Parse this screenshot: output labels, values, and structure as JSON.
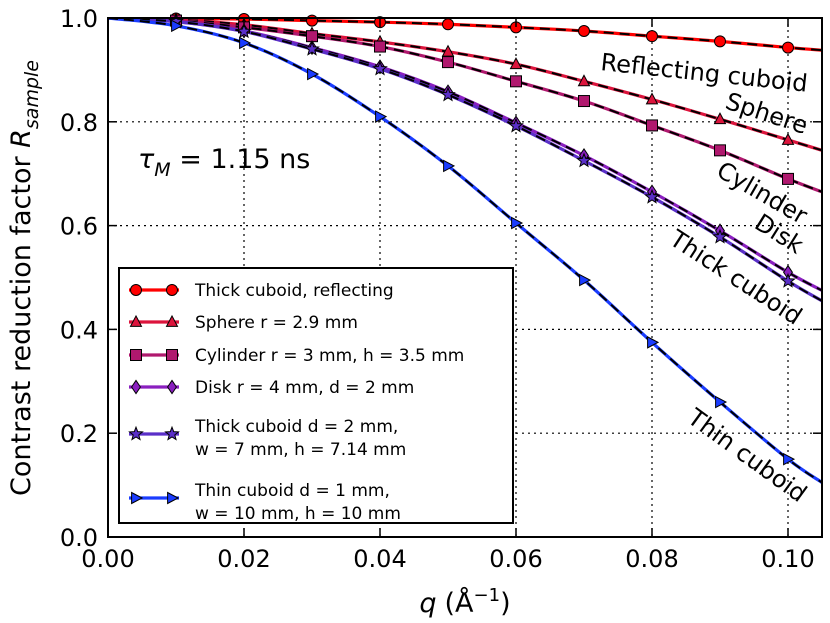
{
  "chart_data": {
    "type": "line",
    "title": "",
    "xlabel": "q (Å⁻¹)",
    "xlabel_var": "q",
    "xlabel_unit_open": "(Å",
    "xlabel_unit_exp": "−1",
    "xlabel_unit_close": ")",
    "ylabel": "Contrast reduction factor R_sample",
    "ylabel_main": "Contrast reduction factor ",
    "ylabel_var": "R",
    "ylabel_sub": "sample",
    "annotation": "τM = 1.15 ns",
    "annotation_var": "τ",
    "annotation_sub": "M",
    "annotation_rest": " = 1.15 ns",
    "xlim": [
      0,
      0.105
    ],
    "ylim": [
      0,
      1.0
    ],
    "xticks": [
      0.0,
      0.02,
      0.04,
      0.06,
      0.08,
      0.1
    ],
    "xtick_labels": [
      "0.00",
      "0.02",
      "0.04",
      "0.06",
      "0.08",
      "0.10"
    ],
    "yticks": [
      0.0,
      0.2,
      0.4,
      0.6,
      0.8,
      1.0
    ],
    "ytick_labels": [
      "0.0",
      "0.2",
      "0.4",
      "0.6",
      "0.8",
      "1.0"
    ],
    "grid": true,
    "legend_position": "lower-left",
    "series": [
      {
        "name": "Thick cuboid, reflecting",
        "legend_lines": [
          "Thick cuboid, reflecting"
        ],
        "curve_label": "Reflecting cuboid",
        "color": "#ff0000",
        "marker": "circle",
        "x": [
          0,
          0.01,
          0.02,
          0.03,
          0.04,
          0.05,
          0.06,
          0.07,
          0.08,
          0.09,
          0.1,
          0.105
        ],
        "values": [
          1.0,
          0.999,
          0.998,
          0.995,
          0.992,
          0.988,
          0.982,
          0.975,
          0.965,
          0.955,
          0.943,
          0.938
        ],
        "marker_x": [
          0.01,
          0.02,
          0.03,
          0.04,
          0.05,
          0.06,
          0.07,
          0.08,
          0.09,
          0.1
        ]
      },
      {
        "name": "Sphere r = 2.9 mm",
        "legend_lines": [
          "Sphere r = 2.9 mm"
        ],
        "curve_label": "Sphere",
        "color": "#dc143c",
        "marker": "triangle",
        "x": [
          0,
          0.01,
          0.02,
          0.03,
          0.04,
          0.05,
          0.06,
          0.07,
          0.08,
          0.09,
          0.1,
          0.105
        ],
        "values": [
          1.0,
          0.997,
          0.987,
          0.97,
          0.954,
          0.935,
          0.911,
          0.878,
          0.843,
          0.805,
          0.765,
          0.745
        ],
        "marker_x": [
          0.01,
          0.02,
          0.03,
          0.04,
          0.05,
          0.06,
          0.07,
          0.08,
          0.09,
          0.1
        ]
      },
      {
        "name": "Cylinder r = 3 mm, h = 3.5 mm",
        "legend_lines": [
          "Cylinder r = 3 mm, h = 3.5 mm"
        ],
        "curve_label": "Cylinder",
        "color": "#b0186e",
        "marker": "square",
        "x": [
          0,
          0.01,
          0.02,
          0.03,
          0.04,
          0.05,
          0.06,
          0.07,
          0.08,
          0.09,
          0.1,
          0.105
        ],
        "values": [
          1.0,
          0.995,
          0.982,
          0.965,
          0.945,
          0.915,
          0.878,
          0.84,
          0.793,
          0.745,
          0.69,
          0.665
        ],
        "marker_x": [
          0.01,
          0.02,
          0.03,
          0.04,
          0.05,
          0.06,
          0.07,
          0.08,
          0.09,
          0.1
        ]
      },
      {
        "name": "Disk r = 4 mm, d = 2 mm",
        "legend_lines": [
          "Disk r = 4 mm, d = 2 mm"
        ],
        "curve_label": "Disk",
        "color": "#8a1fbf",
        "marker": "diamond",
        "x": [
          0,
          0.01,
          0.02,
          0.03,
          0.04,
          0.05,
          0.06,
          0.07,
          0.08,
          0.09,
          0.1,
          0.105
        ],
        "values": [
          1.0,
          0.993,
          0.975,
          0.943,
          0.906,
          0.858,
          0.798,
          0.735,
          0.665,
          0.59,
          0.51,
          0.475
        ],
        "marker_x": [
          0.01,
          0.02,
          0.03,
          0.04,
          0.05,
          0.06,
          0.07,
          0.08,
          0.09,
          0.1
        ]
      },
      {
        "name": "Thick cuboid d = 2 mm, w = 7 mm, h = 7.14 mm",
        "legend_lines": [
          "Thick cuboid d = 2 mm,",
          "w = 7 mm, h = 7.14 mm"
        ],
        "curve_label": "Thick cuboid",
        "color": "#5a2fc8",
        "marker": "star",
        "x": [
          0,
          0.01,
          0.02,
          0.03,
          0.04,
          0.05,
          0.06,
          0.07,
          0.08,
          0.09,
          0.1,
          0.105
        ],
        "values": [
          1.0,
          0.993,
          0.974,
          0.94,
          0.902,
          0.852,
          0.792,
          0.725,
          0.655,
          0.578,
          0.493,
          0.455
        ],
        "marker_x": [
          0.01,
          0.02,
          0.03,
          0.04,
          0.05,
          0.06,
          0.07,
          0.08,
          0.09,
          0.1
        ]
      },
      {
        "name": "Thin cuboid d = 1 mm, w = 10 mm, h = 10 mm",
        "legend_lines": [
          "Thin cuboid d = 1 mm,",
          "w = 10 mm, h = 10 mm"
        ],
        "curve_label": "Thin cuboid",
        "color": "#1a3cff",
        "marker": "triangle-right",
        "x": [
          0,
          0.01,
          0.02,
          0.03,
          0.04,
          0.05,
          0.06,
          0.07,
          0.08,
          0.09,
          0.1,
          0.105
        ],
        "values": [
          1.0,
          0.985,
          0.952,
          0.892,
          0.81,
          0.715,
          0.605,
          0.495,
          0.375,
          0.26,
          0.15,
          0.105
        ],
        "marker_x": [
          0.01,
          0.02,
          0.03,
          0.04,
          0.05,
          0.06,
          0.07,
          0.08,
          0.09,
          0.1
        ]
      }
    ]
  }
}
